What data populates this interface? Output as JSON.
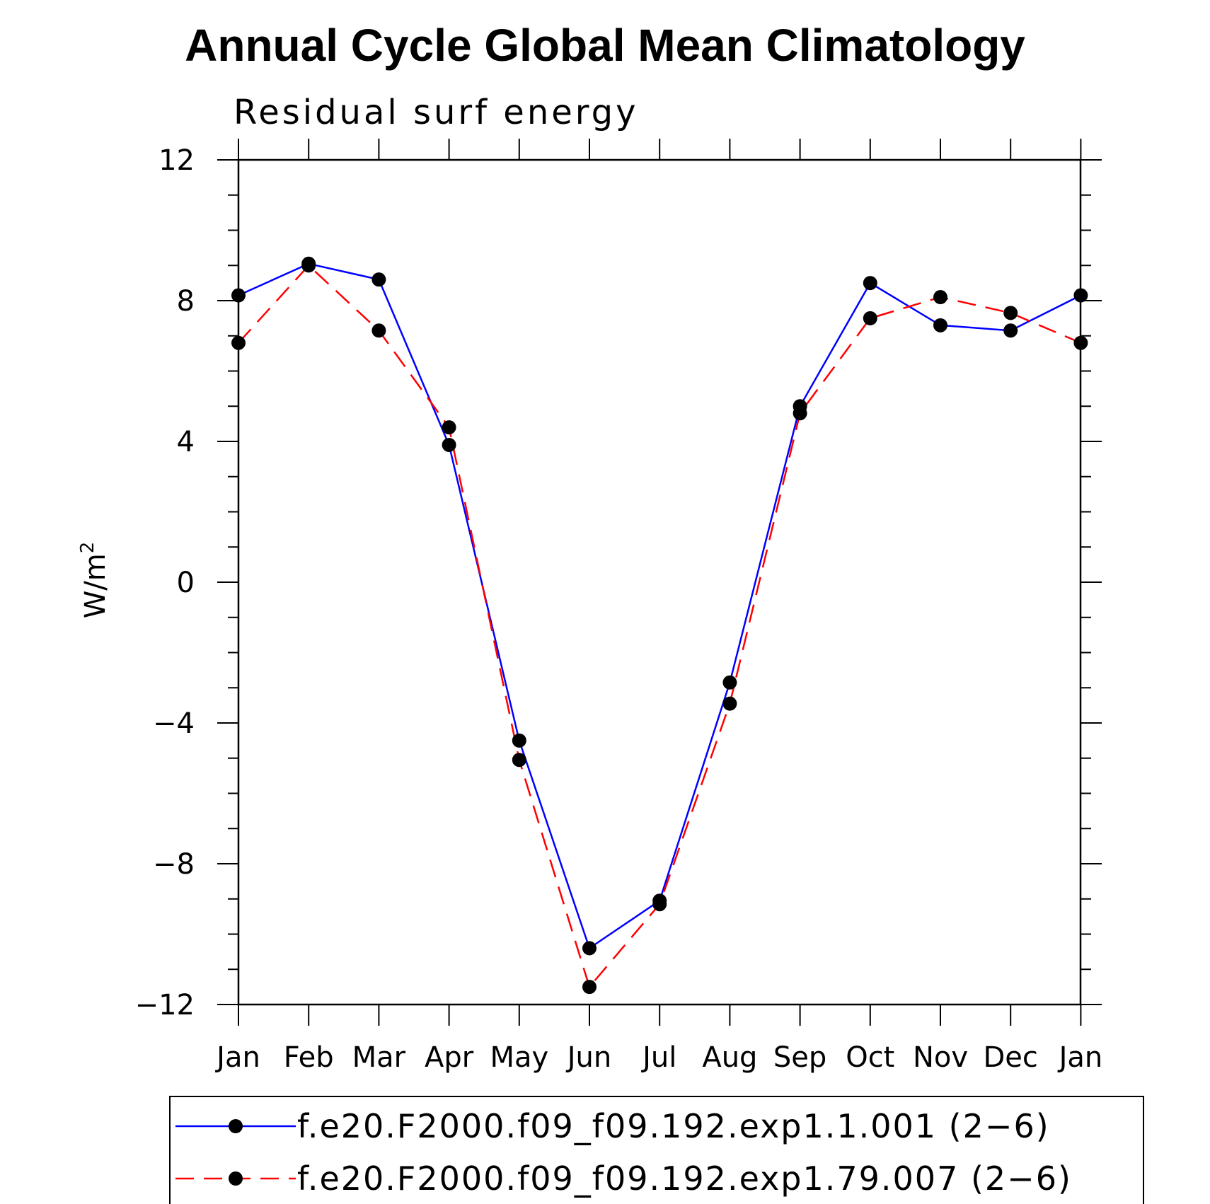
{
  "chart_data": {
    "type": "line",
    "title": "Annual Cycle Global Mean Climatology",
    "subtitle": "Residual surf energy",
    "ylabel": "W/m",
    "ylabel_superscript": "2",
    "xlabel": "",
    "categories": [
      "Jan",
      "Feb",
      "Mar",
      "Apr",
      "May",
      "Jun",
      "Jul",
      "Aug",
      "Sep",
      "Oct",
      "Nov",
      "Dec",
      "Jan"
    ],
    "ylim": [
      -12,
      12
    ],
    "yticks": [
      12,
      8,
      4,
      0,
      -4,
      -8,
      -12
    ],
    "ytick_labels": [
      "12",
      "8",
      "4",
      "0",
      "−4",
      "−8",
      "−12"
    ],
    "series": [
      {
        "name": "f.e20.F2000.f09_f09.192.exp1.1.001 (2−6)",
        "color": "#0000ff",
        "dash": "solid",
        "values": [
          8.15,
          9.05,
          8.6,
          3.9,
          -4.5,
          -10.4,
          -9.05,
          -2.85,
          5.0,
          8.5,
          7.3,
          7.15,
          8.15
        ]
      },
      {
        "name": "f.e20.F2000.f09_f09.192.exp1.79.007 (2−6)",
        "color": "#ff0000",
        "dash": "dashed",
        "values": [
          6.8,
          9.0,
          7.15,
          4.4,
          -5.05,
          -11.5,
          -9.15,
          -3.45,
          4.8,
          7.5,
          8.1,
          7.65,
          6.8
        ]
      }
    ],
    "marker": "filled-circle",
    "marker_color": "#000000",
    "legend_position": "bottom",
    "grid": false
  }
}
